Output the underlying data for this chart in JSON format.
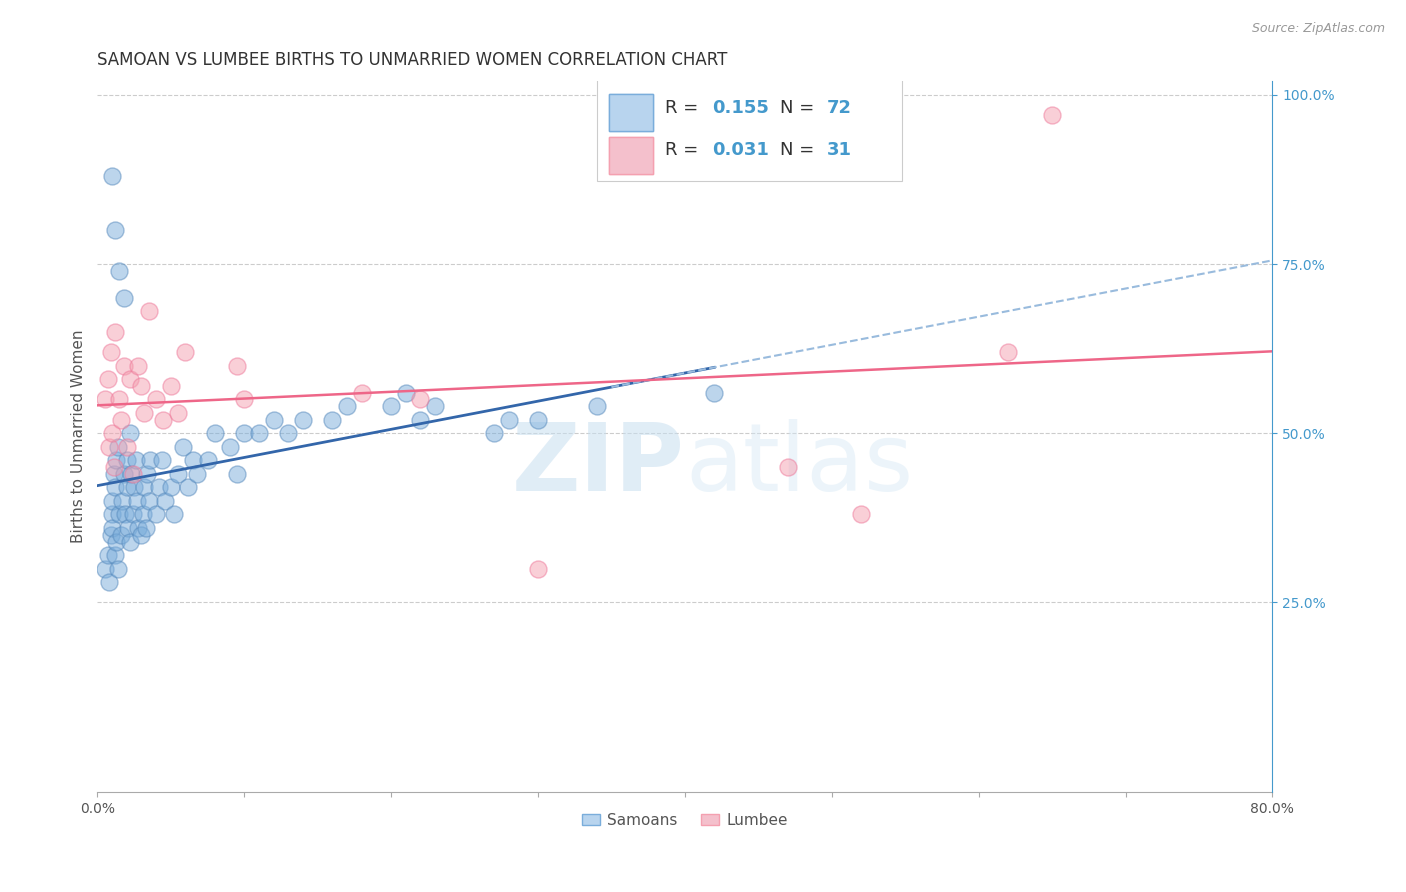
{
  "title": "SAMOAN VS LUMBEE BIRTHS TO UNMARRIED WOMEN CORRELATION CHART",
  "source": "Source: ZipAtlas.com",
  "ylabel": "Births to Unmarried Women",
  "xmin": 0.0,
  "xmax": 0.8,
  "ymin": 0.0,
  "ymax": 1.02,
  "watermark_zip": "ZIP",
  "watermark_atlas": "atlas",
  "samoans_color": "#7aaddb",
  "samoans_edge": "#5588bb",
  "lumbee_color": "#f4a0b0",
  "lumbee_edge": "#ee7799",
  "regression_samoan_color": "#3366aa",
  "regression_lumbee_color": "#ee6688",
  "dashed_color": "#99bbdd",
  "background_color": "#ffffff",
  "grid_color": "#cccccc",
  "right_axis_color": "#4499cc",
  "title_fontsize": 12,
  "axis_label_fontsize": 11,
  "tick_fontsize": 10,
  "legend_fontsize": 13,
  "samoans_x": [
    0.005,
    0.007,
    0.008,
    0.009,
    0.01,
    0.01,
    0.01,
    0.011,
    0.012,
    0.012,
    0.013,
    0.013,
    0.014,
    0.014,
    0.015,
    0.016,
    0.017,
    0.018,
    0.019,
    0.02,
    0.02,
    0.021,
    0.022,
    0.022,
    0.023,
    0.024,
    0.025,
    0.026,
    0.027,
    0.028,
    0.03,
    0.031,
    0.032,
    0.033,
    0.034,
    0.035,
    0.036,
    0.04,
    0.042,
    0.044,
    0.046,
    0.05,
    0.052,
    0.055,
    0.058,
    0.062,
    0.065,
    0.068,
    0.075,
    0.08,
    0.09,
    0.095,
    0.1,
    0.11,
    0.12,
    0.13,
    0.14,
    0.16,
    0.17,
    0.2,
    0.21,
    0.22,
    0.23,
    0.27,
    0.28,
    0.3,
    0.34,
    0.42,
    0.01,
    0.012,
    0.015,
    0.018
  ],
  "samoans_y": [
    0.3,
    0.32,
    0.28,
    0.35,
    0.38,
    0.4,
    0.36,
    0.44,
    0.32,
    0.42,
    0.46,
    0.34,
    0.48,
    0.3,
    0.38,
    0.35,
    0.4,
    0.44,
    0.38,
    0.42,
    0.46,
    0.36,
    0.5,
    0.34,
    0.44,
    0.38,
    0.42,
    0.46,
    0.4,
    0.36,
    0.35,
    0.38,
    0.42,
    0.36,
    0.44,
    0.4,
    0.46,
    0.38,
    0.42,
    0.46,
    0.4,
    0.42,
    0.38,
    0.44,
    0.48,
    0.42,
    0.46,
    0.44,
    0.46,
    0.5,
    0.48,
    0.44,
    0.5,
    0.5,
    0.52,
    0.5,
    0.52,
    0.52,
    0.54,
    0.54,
    0.56,
    0.52,
    0.54,
    0.5,
    0.52,
    0.52,
    0.54,
    0.56,
    0.88,
    0.8,
    0.74,
    0.7
  ],
  "lumbee_x": [
    0.005,
    0.007,
    0.008,
    0.009,
    0.01,
    0.011,
    0.012,
    0.015,
    0.016,
    0.018,
    0.02,
    0.022,
    0.024,
    0.028,
    0.03,
    0.032,
    0.035,
    0.04,
    0.045,
    0.05,
    0.055,
    0.06,
    0.095,
    0.1,
    0.18,
    0.22,
    0.3,
    0.47,
    0.52,
    0.62,
    0.65
  ],
  "lumbee_y": [
    0.55,
    0.58,
    0.48,
    0.62,
    0.5,
    0.45,
    0.65,
    0.55,
    0.52,
    0.6,
    0.48,
    0.58,
    0.44,
    0.6,
    0.57,
    0.53,
    0.68,
    0.55,
    0.52,
    0.57,
    0.53,
    0.62,
    0.6,
    0.55,
    0.56,
    0.55,
    0.3,
    0.45,
    0.38,
    0.62,
    0.97
  ]
}
